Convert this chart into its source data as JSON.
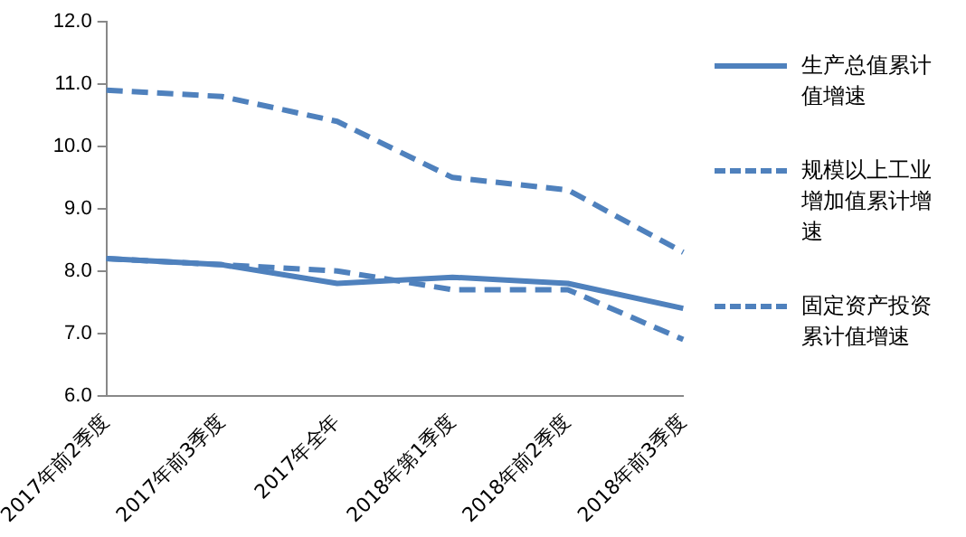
{
  "chart_data": {
    "type": "line",
    "categories": [
      "2017年前2季度",
      "2017年前3季度",
      "2017年全年",
      "2018年第1季度",
      "2018年前2季度",
      "2018年前3季度"
    ],
    "series": [
      {
        "name": "生产总值累计值增速",
        "color": "#4f81bd",
        "values": [
          8.2,
          8.1,
          7.8,
          7.9,
          7.8,
          7.4
        ],
        "line_style": "solid"
      },
      {
        "name": "规模以上工业增加值累计增速",
        "color": "#4f81bd",
        "values": [
          8.2,
          8.1,
          8.0,
          7.7,
          7.7,
          6.9
        ],
        "line_style": "dashed"
      },
      {
        "name": "固定资产投资累计值增速",
        "color": "#4f81bd",
        "values": [
          10.9,
          10.8,
          10.4,
          9.5,
          9.3,
          8.3
        ],
        "line_style": "dashed"
      }
    ],
    "ylim": [
      6,
      12
    ],
    "yticks": [
      {
        "value": 6,
        "label": "6.0"
      },
      {
        "value": 7,
        "label": "7.0"
      },
      {
        "value": 8,
        "label": "8.0"
      },
      {
        "value": 9,
        "label": "9.0"
      },
      {
        "value": 10,
        "label": "10.0"
      },
      {
        "value": 11,
        "label": "11.0"
      },
      {
        "value": 12,
        "label": "12.0"
      }
    ],
    "grid": false,
    "legend": "right",
    "marker": "none"
  }
}
